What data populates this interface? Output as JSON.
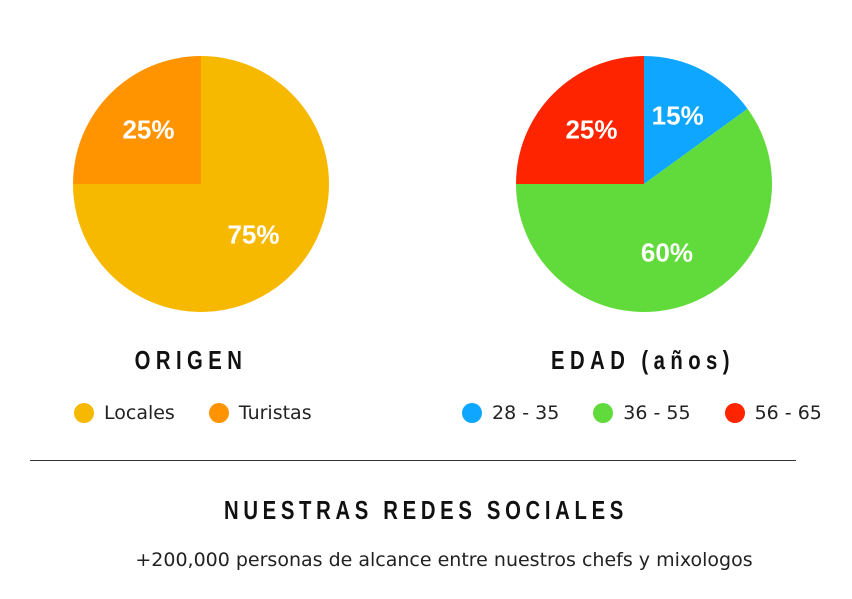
{
  "chart_data": [
    {
      "type": "pie",
      "title": "ORIGEN",
      "categories": [
        "Locales",
        "Turistas"
      ],
      "values": [
        75,
        25
      ],
      "labels": [
        "75%",
        "25%"
      ],
      "colors": [
        "#F7B800",
        "#FF9400"
      ],
      "legend": "bottom"
    },
    {
      "type": "pie",
      "title": "EDAD (años)",
      "categories": [
        "28 - 35",
        "36 - 55",
        "56 - 65"
      ],
      "values": [
        15,
        60,
        25
      ],
      "labels": [
        "15%",
        "60%",
        "25%"
      ],
      "colors": [
        "#0FA6FF",
        "#61DB3C",
        "#FF2400"
      ],
      "legend": "bottom"
    }
  ],
  "social": {
    "title": "NUESTRAS REDES SOCIALES",
    "subtitle": "+200,000 personas de alcance entre nuestros chefs y mixologos"
  }
}
